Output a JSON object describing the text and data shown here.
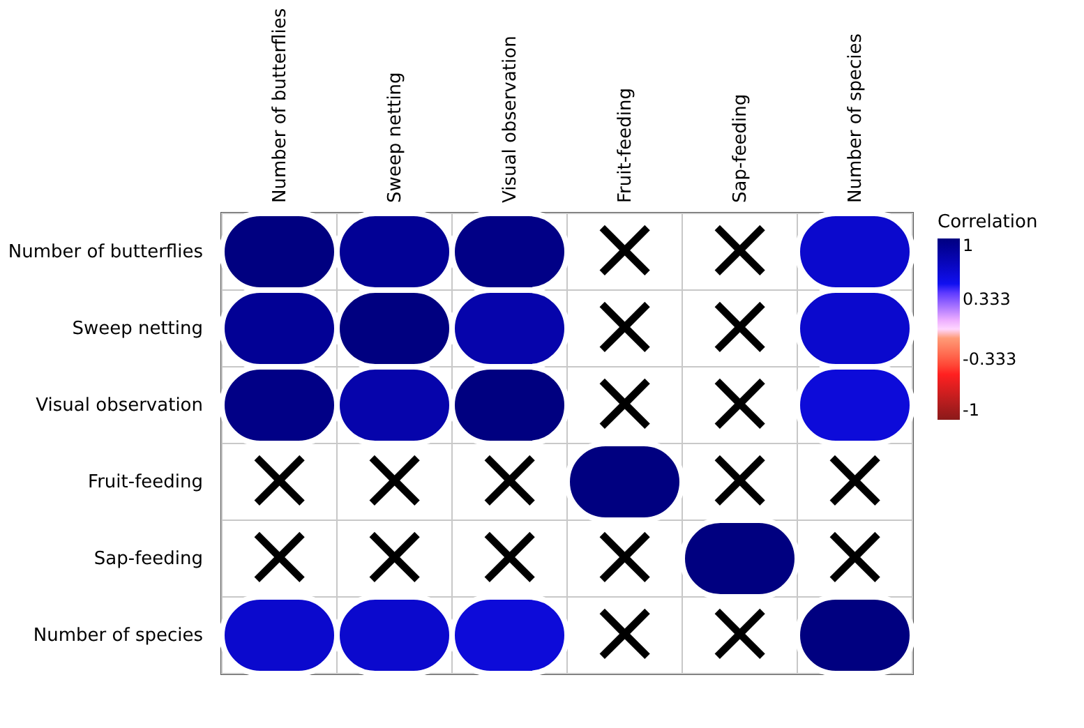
{
  "chart_data": {
    "type": "heatmap",
    "categories": [
      "Number of butterflies",
      "Sweep netting",
      "Visual observation",
      "Fruit-feeding",
      "Sap-feeding",
      "Number of species"
    ],
    "y_categories": [
      "Number of butterflies",
      "Sweep netting",
      "Visual observation",
      "Fruit-feeding",
      "Sap-feeding",
      "Number of species"
    ],
    "cells": [
      [
        1,
        0.9,
        0.97,
        null,
        null,
        0.65
      ],
      [
        0.9,
        1,
        0.8,
        null,
        null,
        0.65
      ],
      [
        0.97,
        0.8,
        1,
        null,
        null,
        0.6
      ],
      [
        null,
        null,
        null,
        1,
        null,
        null
      ],
      [
        null,
        null,
        null,
        null,
        1,
        null
      ],
      [
        0.65,
        0.65,
        0.6,
        null,
        null,
        1
      ]
    ],
    "cell_labels": [
      [
        null,
        null,
        null,
        "×",
        "×",
        null
      ],
      [
        null,
        null,
        null,
        "×",
        "×",
        null
      ],
      [
        null,
        null,
        null,
        "×",
        "×",
        null
      ],
      [
        "×",
        "×",
        "×",
        null,
        "×",
        "×"
      ],
      [
        "×",
        "×",
        "×",
        "×",
        null,
        "×"
      ],
      [
        null,
        null,
        null,
        "×",
        "×",
        null
      ]
    ],
    "clabel": "Correlation",
    "clim": [
      -1,
      1
    ],
    "cticks": [
      1,
      0.333,
      -0.333,
      -1
    ]
  }
}
